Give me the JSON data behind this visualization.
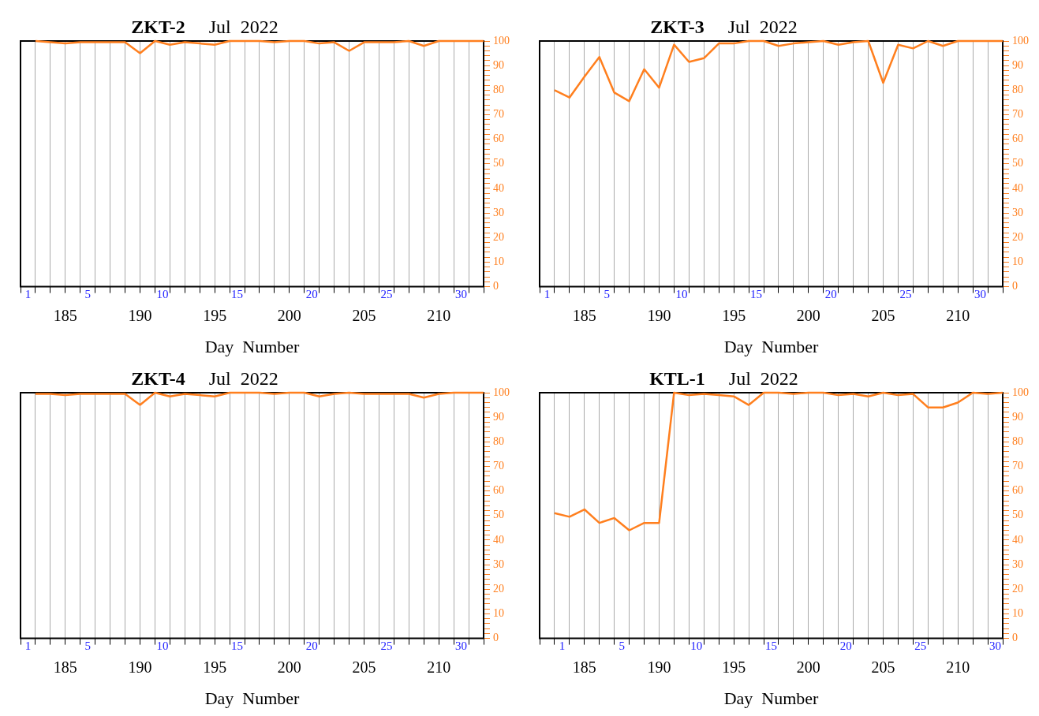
{
  "chart_data": [
    {
      "type": "line",
      "title": "ZKT-2",
      "subtitle": "Jul  2022",
      "xlabel": "Day  Number",
      "x": [
        183,
        184,
        185,
        186,
        187,
        188,
        189,
        190,
        191,
        192,
        193,
        194,
        195,
        196,
        197,
        198,
        199,
        200,
        201,
        202,
        203,
        204,
        205,
        206,
        207,
        208,
        209,
        210,
        211,
        212,
        213
      ],
      "series": [
        {
          "color": "#ff7f1e",
          "values": [
            100,
            99.5,
            99,
            99.5,
            99.5,
            99.5,
            99.5,
            95,
            100,
            98.5,
            99.5,
            99,
            98.5,
            100,
            100,
            100,
            99.5,
            100,
            100,
            99,
            99.5,
            96,
            99.5,
            99.5,
            99.5,
            100,
            98,
            100,
            100,
            100,
            100
          ]
        }
      ],
      "xlim": [
        182,
        213
      ],
      "xticks": [
        {
          "value": 182,
          "label": null
        },
        {
          "value": 183,
          "label": null
        },
        {
          "value": 184,
          "label": null
        },
        185,
        {
          "value": 186,
          "label": null
        },
        {
          "value": 187,
          "label": null
        },
        {
          "value": 188,
          "label": null
        },
        {
          "value": 189,
          "label": null
        },
        190,
        {
          "value": 191,
          "label": null
        },
        {
          "value": 192,
          "label": null
        },
        {
          "value": 193,
          "label": null
        },
        {
          "value": 194,
          "label": null
        },
        195,
        {
          "value": 196,
          "label": null
        },
        {
          "value": 197,
          "label": null
        },
        {
          "value": 198,
          "label": null
        },
        {
          "value": 199,
          "label": null
        },
        200,
        {
          "value": 201,
          "label": null
        },
        {
          "value": 202,
          "label": null
        },
        {
          "value": 203,
          "label": null
        },
        {
          "value": 204,
          "label": null
        },
        205,
        {
          "value": 206,
          "label": null
        },
        {
          "value": 207,
          "label": null
        },
        {
          "value": 208,
          "label": null
        },
        {
          "value": 209,
          "label": null
        },
        210,
        {
          "value": 211,
          "label": null
        },
        {
          "value": 212,
          "label": null
        },
        {
          "value": 213,
          "label": null
        }
      ],
      "x2lim": [
        0.5,
        31.5
      ],
      "x2ticks": [
        1,
        5,
        10,
        15,
        20,
        25,
        30
      ],
      "ylim": [
        0,
        100
      ],
      "yticks": [
        0,
        {
          "value": 2,
          "label": null
        },
        {
          "value": 4,
          "label": null
        },
        {
          "value": 6,
          "label": null
        },
        {
          "value": 8,
          "label": null
        },
        10,
        {
          "value": 12,
          "label": null
        },
        {
          "value": 14,
          "label": null
        },
        {
          "value": 16,
          "label": null
        },
        {
          "value": 18,
          "label": null
        },
        20,
        {
          "value": 22,
          "label": null
        },
        {
          "value": 24,
          "label": null
        },
        {
          "value": 26,
          "label": null
        },
        {
          "value": 28,
          "label": null
        },
        30,
        {
          "value": 32,
          "label": null
        },
        {
          "value": 34,
          "label": null
        },
        {
          "value": 36,
          "label": null
        },
        {
          "value": 38,
          "label": null
        },
        40,
        {
          "value": 42,
          "label": null
        },
        {
          "value": 44,
          "label": null
        },
        {
          "value": 46,
          "label": null
        },
        {
          "value": 48,
          "label": null
        },
        50,
        {
          "value": 52,
          "label": null
        },
        {
          "value": 54,
          "label": null
        },
        {
          "value": 56,
          "label": null
        },
        {
          "value": 58,
          "label": null
        },
        60,
        {
          "value": 62,
          "label": null
        },
        {
          "value": 64,
          "label": null
        },
        {
          "value": 66,
          "label": null
        },
        {
          "value": 68,
          "label": null
        },
        70,
        {
          "value": 72,
          "label": null
        },
        {
          "value": 74,
          "label": null
        },
        {
          "value": 76,
          "label": null
        },
        {
          "value": 78,
          "label": null
        },
        80,
        {
          "value": 82,
          "label": null
        },
        {
          "value": 84,
          "label": null
        },
        {
          "value": 86,
          "label": null
        },
        {
          "value": 88,
          "label": null
        },
        90,
        {
          "value": 92,
          "label": null
        },
        {
          "value": 94,
          "label": null
        },
        {
          "value": 96,
          "label": null
        },
        {
          "value": 98,
          "label": null
        },
        100
      ],
      "grid": "x",
      "marker": "none",
      "line_style": "solid"
    },
    {
      "type": "line",
      "title": "ZKT-3",
      "subtitle": "Jul  2022",
      "xlabel": "Day  Number",
      "x": [
        183,
        184,
        185,
        186,
        187,
        188,
        189,
        190,
        191,
        192,
        193,
        194,
        195,
        196,
        197,
        198,
        199,
        200,
        201,
        202,
        203,
        204,
        205,
        206,
        207,
        208,
        209,
        210,
        211,
        212,
        213
      ],
      "series": [
        {
          "color": "#ff7f1e",
          "values": [
            80,
            77,
            85.5,
            93.5,
            79,
            75.5,
            88.5,
            81,
            98.5,
            91.5,
            93,
            99,
            99,
            100,
            100,
            98,
            99,
            99.5,
            100,
            98.5,
            99.5,
            100,
            83,
            98.5,
            97,
            100,
            98,
            100,
            100,
            100,
            100
          ]
        }
      ],
      "xlim": [
        182,
        213
      ],
      "xticks": [
        {
          "value": 182,
          "label": null
        },
        {
          "value": 183,
          "label": null
        },
        {
          "value": 184,
          "label": null
        },
        185,
        {
          "value": 186,
          "label": null
        },
        {
          "value": 187,
          "label": null
        },
        {
          "value": 188,
          "label": null
        },
        {
          "value": 189,
          "label": null
        },
        190,
        {
          "value": 191,
          "label": null
        },
        {
          "value": 192,
          "label": null
        },
        {
          "value": 193,
          "label": null
        },
        {
          "value": 194,
          "label": null
        },
        195,
        {
          "value": 196,
          "label": null
        },
        {
          "value": 197,
          "label": null
        },
        {
          "value": 198,
          "label": null
        },
        {
          "value": 199,
          "label": null
        },
        200,
        {
          "value": 201,
          "label": null
        },
        {
          "value": 202,
          "label": null
        },
        {
          "value": 203,
          "label": null
        },
        {
          "value": 204,
          "label": null
        },
        205,
        {
          "value": 206,
          "label": null
        },
        {
          "value": 207,
          "label": null
        },
        {
          "value": 208,
          "label": null
        },
        {
          "value": 209,
          "label": null
        },
        210,
        {
          "value": 211,
          "label": null
        },
        {
          "value": 212,
          "label": null
        },
        {
          "value": 213,
          "label": null
        }
      ],
      "x2lim": [
        0.5,
        31.5
      ],
      "x2ticks": [
        1,
        5,
        10,
        15,
        20,
        25,
        30
      ],
      "ylim": [
        0,
        100
      ],
      "yticks": [
        0,
        {
          "value": 2,
          "label": null
        },
        {
          "value": 4,
          "label": null
        },
        {
          "value": 6,
          "label": null
        },
        {
          "value": 8,
          "label": null
        },
        10,
        {
          "value": 12,
          "label": null
        },
        {
          "value": 14,
          "label": null
        },
        {
          "value": 16,
          "label": null
        },
        {
          "value": 18,
          "label": null
        },
        20,
        {
          "value": 22,
          "label": null
        },
        {
          "value": 24,
          "label": null
        },
        {
          "value": 26,
          "label": null
        },
        {
          "value": 28,
          "label": null
        },
        30,
        {
          "value": 32,
          "label": null
        },
        {
          "value": 34,
          "label": null
        },
        {
          "value": 36,
          "label": null
        },
        {
          "value": 38,
          "label": null
        },
        40,
        {
          "value": 42,
          "label": null
        },
        {
          "value": 44,
          "label": null
        },
        {
          "value": 46,
          "label": null
        },
        {
          "value": 48,
          "label": null
        },
        50,
        {
          "value": 52,
          "label": null
        },
        {
          "value": 54,
          "label": null
        },
        {
          "value": 56,
          "label": null
        },
        {
          "value": 58,
          "label": null
        },
        60,
        {
          "value": 62,
          "label": null
        },
        {
          "value": 64,
          "label": null
        },
        {
          "value": 66,
          "label": null
        },
        {
          "value": 68,
          "label": null
        },
        70,
        {
          "value": 72,
          "label": null
        },
        {
          "value": 74,
          "label": null
        },
        {
          "value": 76,
          "label": null
        },
        {
          "value": 78,
          "label": null
        },
        80,
        {
          "value": 82,
          "label": null
        },
        {
          "value": 84,
          "label": null
        },
        {
          "value": 86,
          "label": null
        },
        {
          "value": 88,
          "label": null
        },
        90,
        {
          "value": 92,
          "label": null
        },
        {
          "value": 94,
          "label": null
        },
        {
          "value": 96,
          "label": null
        },
        {
          "value": 98,
          "label": null
        },
        100
      ],
      "grid": "x",
      "marker": "none",
      "line_style": "solid"
    },
    {
      "type": "line",
      "title": "ZKT-4",
      "subtitle": "Jul  2022",
      "xlabel": "Day  Number",
      "x": [
        183,
        184,
        185,
        186,
        187,
        188,
        189,
        190,
        191,
        192,
        193,
        194,
        195,
        196,
        197,
        198,
        199,
        200,
        201,
        202,
        203,
        204,
        205,
        206,
        207,
        208,
        209,
        210,
        211,
        212,
        213
      ],
      "series": [
        {
          "color": "#ff7f1e",
          "values": [
            99.5,
            99.5,
            99,
            99.5,
            99.5,
            99.5,
            99.5,
            95,
            100,
            98.5,
            99.5,
            99,
            98.5,
            100,
            100,
            100,
            99.5,
            100,
            100,
            98.5,
            99.5,
            100,
            99.5,
            99.5,
            99.5,
            99.5,
            98,
            99.5,
            100,
            100,
            100
          ]
        }
      ],
      "xlim": [
        182,
        213
      ],
      "xticks": [
        {
          "value": 182,
          "label": null
        },
        {
          "value": 183,
          "label": null
        },
        {
          "value": 184,
          "label": null
        },
        185,
        {
          "value": 186,
          "label": null
        },
        {
          "value": 187,
          "label": null
        },
        {
          "value": 188,
          "label": null
        },
        {
          "value": 189,
          "label": null
        },
        190,
        {
          "value": 191,
          "label": null
        },
        {
          "value": 192,
          "label": null
        },
        {
          "value": 193,
          "label": null
        },
        {
          "value": 194,
          "label": null
        },
        195,
        {
          "value": 196,
          "label": null
        },
        {
          "value": 197,
          "label": null
        },
        {
          "value": 198,
          "label": null
        },
        {
          "value": 199,
          "label": null
        },
        200,
        {
          "value": 201,
          "label": null
        },
        {
          "value": 202,
          "label": null
        },
        {
          "value": 203,
          "label": null
        },
        {
          "value": 204,
          "label": null
        },
        205,
        {
          "value": 206,
          "label": null
        },
        {
          "value": 207,
          "label": null
        },
        {
          "value": 208,
          "label": null
        },
        {
          "value": 209,
          "label": null
        },
        210,
        {
          "value": 211,
          "label": null
        },
        {
          "value": 212,
          "label": null
        },
        {
          "value": 213,
          "label": null
        }
      ],
      "x2lim": [
        0.5,
        31.5
      ],
      "x2ticks": [
        1,
        5,
        10,
        15,
        20,
        25,
        30
      ],
      "ylim": [
        0,
        100
      ],
      "yticks": [
        0,
        {
          "value": 2,
          "label": null
        },
        {
          "value": 4,
          "label": null
        },
        {
          "value": 6,
          "label": null
        },
        {
          "value": 8,
          "label": null
        },
        10,
        {
          "value": 12,
          "label": null
        },
        {
          "value": 14,
          "label": null
        },
        {
          "value": 16,
          "label": null
        },
        {
          "value": 18,
          "label": null
        },
        20,
        {
          "value": 22,
          "label": null
        },
        {
          "value": 24,
          "label": null
        },
        {
          "value": 26,
          "label": null
        },
        {
          "value": 28,
          "label": null
        },
        30,
        {
          "value": 32,
          "label": null
        },
        {
          "value": 34,
          "label": null
        },
        {
          "value": 36,
          "label": null
        },
        {
          "value": 38,
          "label": null
        },
        40,
        {
          "value": 42,
          "label": null
        },
        {
          "value": 44,
          "label": null
        },
        {
          "value": 46,
          "label": null
        },
        {
          "value": 48,
          "label": null
        },
        50,
        {
          "value": 52,
          "label": null
        },
        {
          "value": 54,
          "label": null
        },
        {
          "value": 56,
          "label": null
        },
        {
          "value": 58,
          "label": null
        },
        60,
        {
          "value": 62,
          "label": null
        },
        {
          "value": 64,
          "label": null
        },
        {
          "value": 66,
          "label": null
        },
        {
          "value": 68,
          "label": null
        },
        70,
        {
          "value": 72,
          "label": null
        },
        {
          "value": 74,
          "label": null
        },
        {
          "value": 76,
          "label": null
        },
        {
          "value": 78,
          "label": null
        },
        80,
        {
          "value": 82,
          "label": null
        },
        {
          "value": 84,
          "label": null
        },
        {
          "value": 86,
          "label": null
        },
        {
          "value": 88,
          "label": null
        },
        90,
        {
          "value": 92,
          "label": null
        },
        {
          "value": 94,
          "label": null
        },
        {
          "value": 96,
          "label": null
        },
        {
          "value": 98,
          "label": null
        },
        100
      ],
      "grid": "x",
      "marker": "none",
      "line_style": "solid"
    },
    {
      "type": "line",
      "title": "KTL-1",
      "subtitle": "Jul  2022",
      "xlabel": "Day  Number",
      "x": [
        183,
        184,
        185,
        186,
        187,
        188,
        189,
        190,
        191,
        192,
        193,
        194,
        195,
        196,
        197,
        198,
        199,
        200,
        201,
        202,
        203,
        204,
        205,
        206,
        207,
        208,
        209,
        210,
        211,
        212,
        213
      ],
      "series": [
        {
          "color": "#ff7f1e",
          "values": [
            51,
            49.5,
            52.5,
            47,
            49,
            44,
            47,
            47,
            100,
            99,
            99.5,
            99,
            98.5,
            95,
            100,
            100,
            99.5,
            100,
            100,
            99,
            99.5,
            98.5,
            100,
            99,
            99.5,
            94,
            94,
            96,
            100,
            99.5,
            100
          ]
        }
      ],
      "xlim": [
        182,
        213
      ],
      "xticks": [
        {
          "value": 182,
          "label": null
        },
        {
          "value": 183,
          "label": null
        },
        {
          "value": 184,
          "label": null
        },
        185,
        {
          "value": 186,
          "label": null
        },
        {
          "value": 187,
          "label": null
        },
        {
          "value": 188,
          "label": null
        },
        {
          "value": 189,
          "label": null
        },
        190,
        {
          "value": 191,
          "label": null
        },
        {
          "value": 192,
          "label": null
        },
        {
          "value": 193,
          "label": null
        },
        {
          "value": 194,
          "label": null
        },
        195,
        {
          "value": 196,
          "label": null
        },
        {
          "value": 197,
          "label": null
        },
        {
          "value": 198,
          "label": null
        },
        {
          "value": 199,
          "label": null
        },
        200,
        {
          "value": 201,
          "label": null
        },
        {
          "value": 202,
          "label": null
        },
        {
          "value": 203,
          "label": null
        },
        {
          "value": 204,
          "label": null
        },
        205,
        {
          "value": 206,
          "label": null
        },
        {
          "value": 207,
          "label": null
        },
        {
          "value": 208,
          "label": null
        },
        {
          "value": 209,
          "label": null
        },
        210,
        {
          "value": 211,
          "label": null
        },
        {
          "value": 212,
          "label": null
        },
        {
          "value": 213,
          "label": null
        }
      ],
      "x2lim": [
        -0.5,
        30.5
      ],
      "x2ticks": [
        1,
        5,
        10,
        15,
        20,
        25,
        30
      ],
      "ylim": [
        0,
        100
      ],
      "yticks": [
        0,
        {
          "value": 2,
          "label": null
        },
        {
          "value": 4,
          "label": null
        },
        {
          "value": 6,
          "label": null
        },
        {
          "value": 8,
          "label": null
        },
        10,
        {
          "value": 12,
          "label": null
        },
        {
          "value": 14,
          "label": null
        },
        {
          "value": 16,
          "label": null
        },
        {
          "value": 18,
          "label": null
        },
        20,
        {
          "value": 22,
          "label": null
        },
        {
          "value": 24,
          "label": null
        },
        {
          "value": 26,
          "label": null
        },
        {
          "value": 28,
          "label": null
        },
        30,
        {
          "value": 32,
          "label": null
        },
        {
          "value": 34,
          "label": null
        },
        {
          "value": 36,
          "label": null
        },
        {
          "value": 38,
          "label": null
        },
        40,
        {
          "value": 42,
          "label": null
        },
        {
          "value": 44,
          "label": null
        },
        {
          "value": 46,
          "label": null
        },
        {
          "value": 48,
          "label": null
        },
        50,
        {
          "value": 52,
          "label": null
        },
        {
          "value": 54,
          "label": null
        },
        {
          "value": 56,
          "label": null
        },
        {
          "value": 58,
          "label": null
        },
        60,
        {
          "value": 62,
          "label": null
        },
        {
          "value": 64,
          "label": null
        },
        {
          "value": 66,
          "label": null
        },
        {
          "value": 68,
          "label": null
        },
        70,
        {
          "value": 72,
          "label": null
        },
        {
          "value": 74,
          "label": null
        },
        {
          "value": 76,
          "label": null
        },
        {
          "value": 78,
          "label": null
        },
        80,
        {
          "value": 82,
          "label": null
        },
        {
          "value": 84,
          "label": null
        },
        {
          "value": 86,
          "label": null
        },
        {
          "value": 88,
          "label": null
        },
        90,
        {
          "value": 92,
          "label": null
        },
        {
          "value": 94,
          "label": null
        },
        {
          "value": 96,
          "label": null
        },
        {
          "value": 98,
          "label": null
        },
        100
      ],
      "grid": "x",
      "marker": "none",
      "line_style": "solid"
    }
  ]
}
